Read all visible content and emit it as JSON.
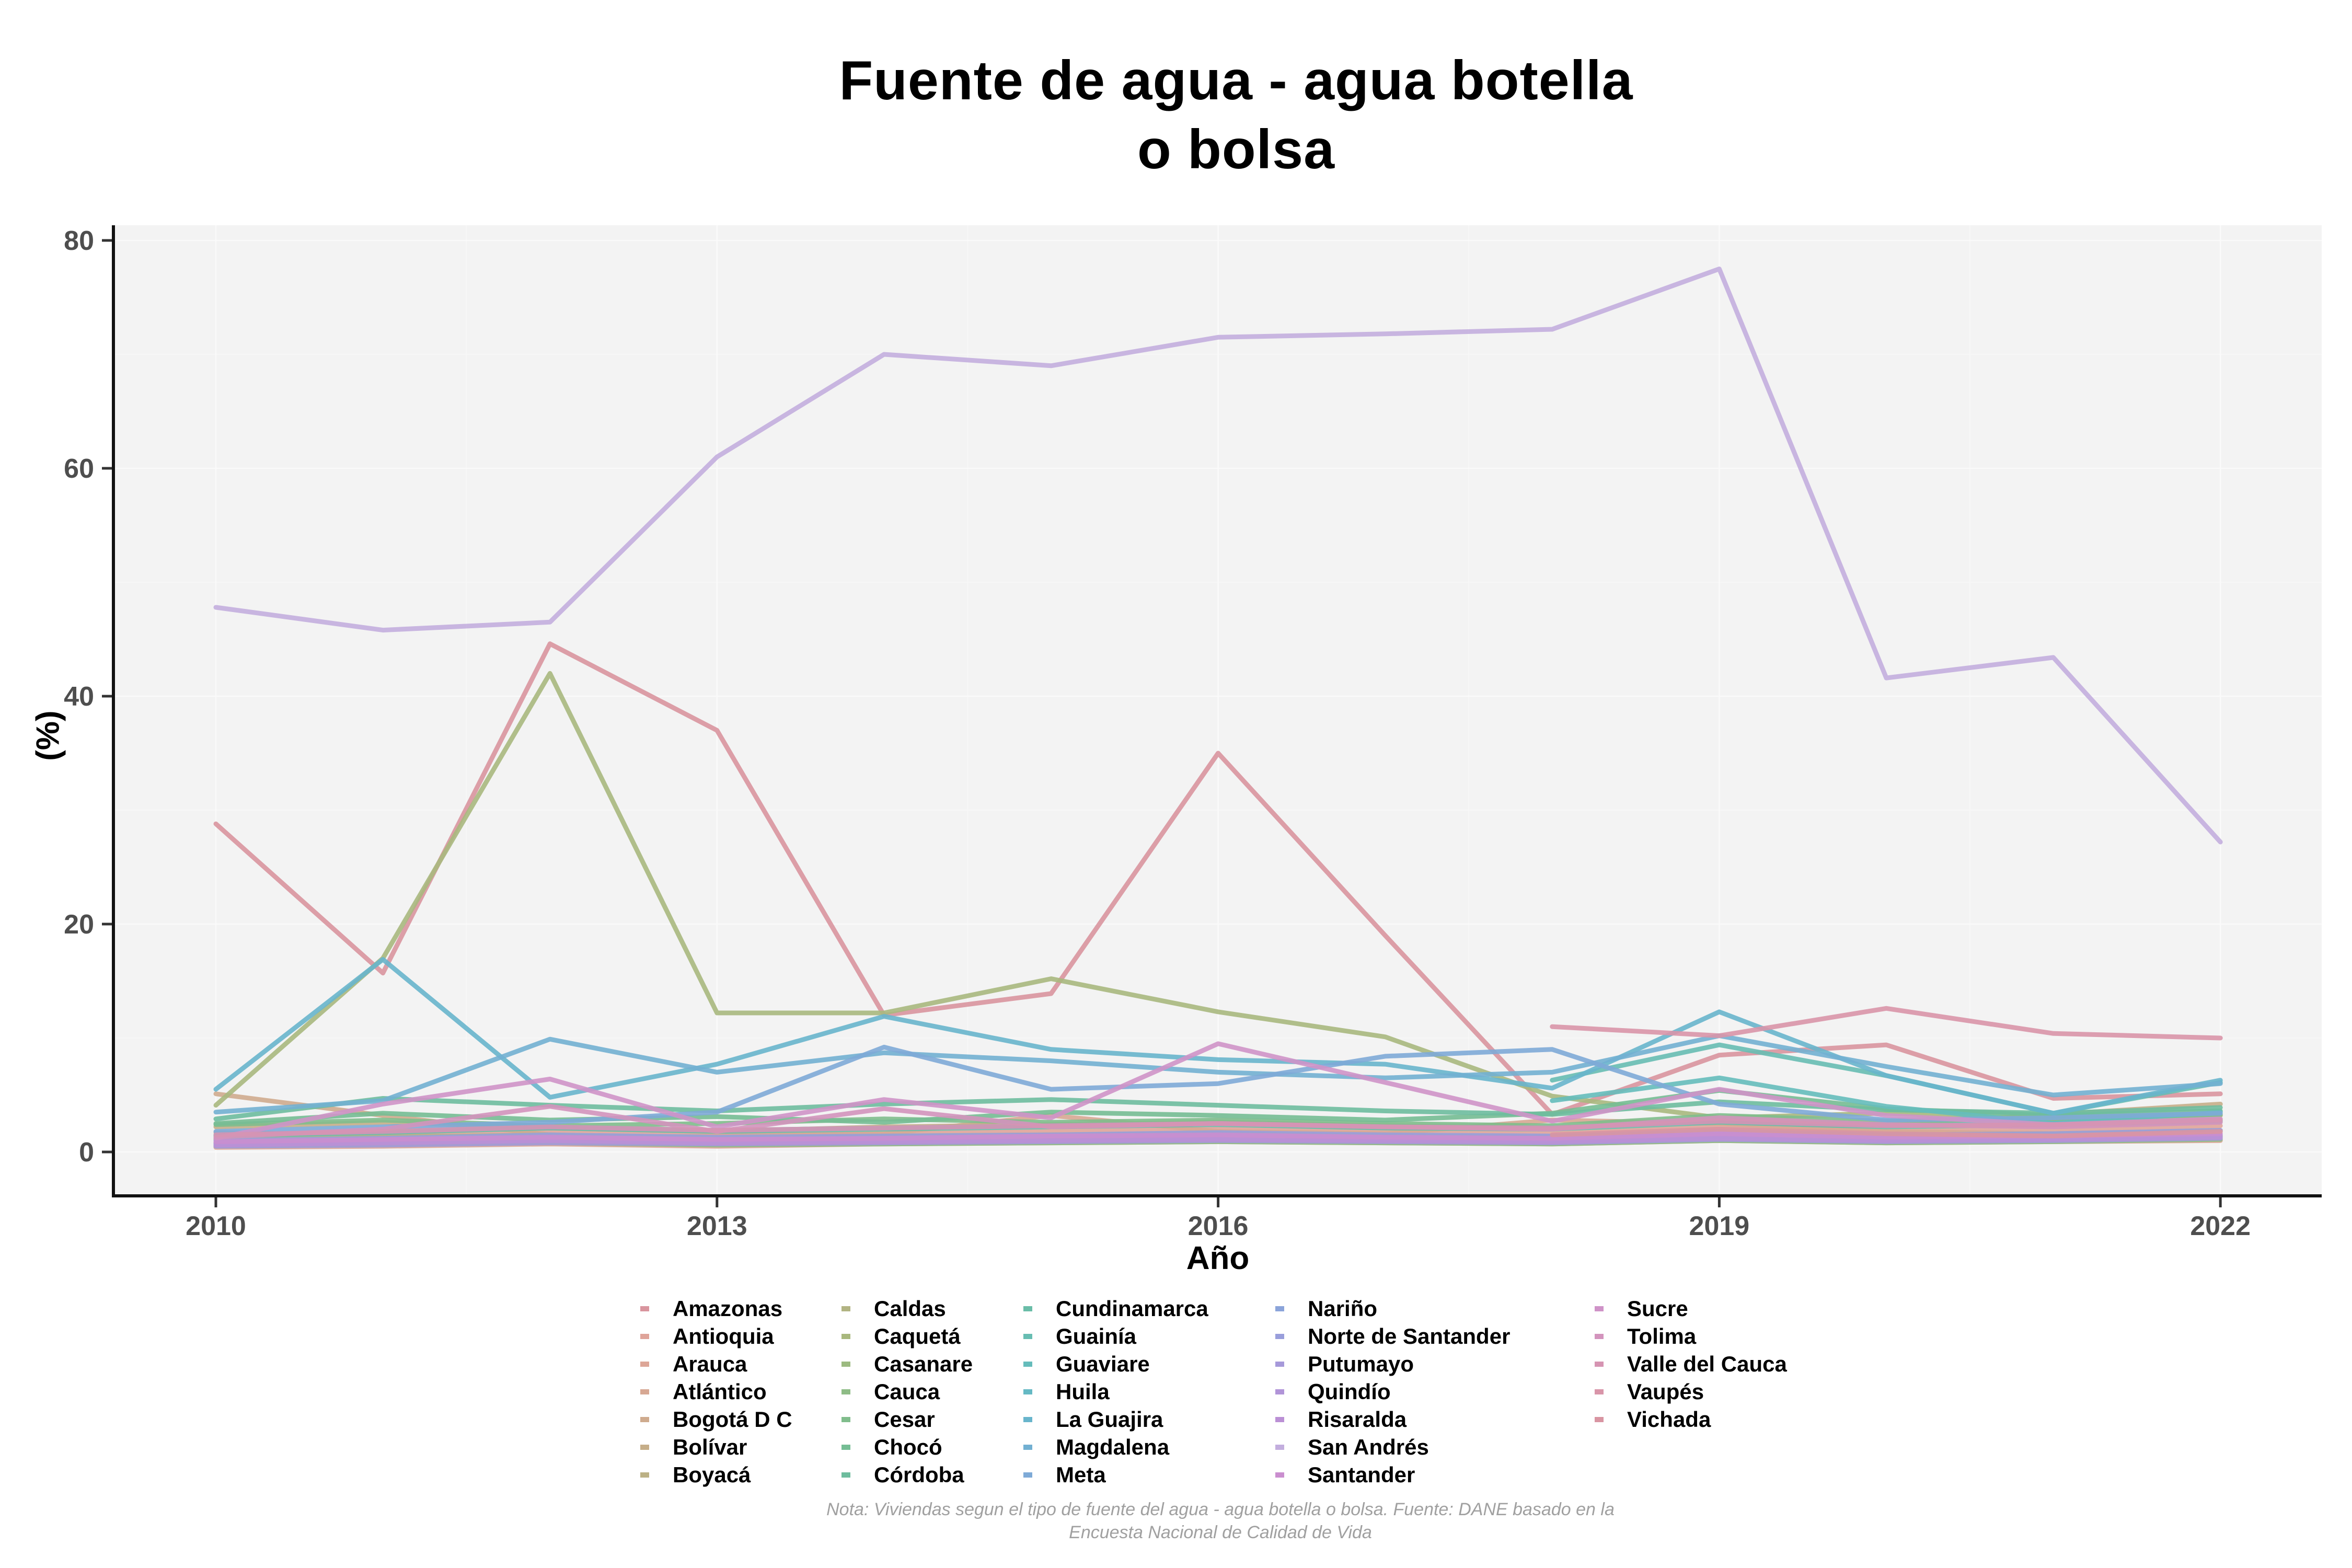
{
  "title": {
    "line1": "Fuente de agua - agua botella",
    "line2": "o bolsa"
  },
  "axes": {
    "x_label": "Año",
    "y_label": "(%)",
    "x_ticks": [
      2010,
      2013,
      2016,
      2019,
      2022
    ],
    "y_ticks": [
      0,
      20,
      40,
      60,
      80
    ]
  },
  "footnote": {
    "line1": "Nota: Viviendas segun el tipo de fuente del agua - agua botella o bolsa. Fuente: DANE basado en la",
    "line2": "Encuesta Nacional de Calidad de Vida"
  },
  "chart_data": {
    "type": "line",
    "title": "Fuente de agua - agua botella o bolsa",
    "xlabel": "Año",
    "ylabel": "(%)",
    "x": [
      2010,
      2011,
      2012,
      2013,
      2014,
      2015,
      2016,
      2017,
      2018,
      2019,
      2020,
      2021,
      2022
    ],
    "xlim": [
      2010,
      2022
    ],
    "ylim": [
      0,
      80
    ],
    "grid": "on",
    "legend_position": "bottom",
    "panel_color": "#f3f3f3",
    "series": [
      {
        "name": "Amazonas",
        "color": "#d9959e",
        "values": [
          28.8,
          15.7,
          44.6,
          37.0,
          12.0,
          13.9,
          35.0,
          19.0,
          3.3,
          8.5,
          9.4,
          4.7,
          5.1
        ]
      },
      {
        "name": "Antioquia",
        "color": "#dfa49a",
        "values": [
          1.2,
          1.4,
          1.8,
          1.5,
          1.6,
          1.8,
          2.0,
          1.8,
          1.6,
          2.2,
          1.8,
          2.0,
          2.3
        ]
      },
      {
        "name": "Arauca",
        "color": "#dda697",
        "values": [
          0.4,
          0.5,
          0.7,
          0.5,
          0.7,
          0.8,
          0.9,
          0.8,
          0.7,
          1.0,
          0.8,
          0.9,
          1.0
        ]
      },
      {
        "name": "Atlántico",
        "color": "#d7a893",
        "values": [
          1.7,
          1.5,
          1.2,
          1.4,
          1.6,
          3.2,
          1.8,
          1.6,
          2.8,
          2.5,
          1.8,
          1.6,
          1.9
        ]
      },
      {
        "name": "Bogotá D C",
        "color": "#cfab8e",
        "values": [
          5.1,
          3.2,
          1.5,
          1.2,
          1.4,
          1.3,
          1.5,
          1.3,
          1.2,
          1.5,
          1.3,
          1.2,
          1.4
        ]
      },
      {
        "name": "Bolívar",
        "color": "#c6ae89",
        "values": [
          2.2,
          2.6,
          2.1,
          1.8,
          2.2,
          2.4,
          2.6,
          2.3,
          2.1,
          2.8,
          2.4,
          3.3,
          4.2
        ]
      },
      {
        "name": "Boyacá",
        "color": "#bcb185",
        "values": [
          0.6,
          0.8,
          0.9,
          0.7,
          0.8,
          0.9,
          1.0,
          0.9,
          0.8,
          1.1,
          0.9,
          1.0,
          1.2
        ]
      },
      {
        "name": "Caldas",
        "color": "#b2b483",
        "values": [
          1.1,
          1.3,
          1.5,
          1.2,
          1.4,
          1.5,
          1.6,
          1.4,
          1.3,
          1.7,
          1.5,
          1.6,
          1.8
        ]
      },
      {
        "name": "Caquetá",
        "color": "#a9b87e",
        "values": [
          4.1,
          17.0,
          42.0,
          12.2,
          12.2,
          15.2,
          12.3,
          10.1,
          4.9,
          3.0,
          3.4,
          2.8,
          3.2
        ]
      },
      {
        "name": "Casanare",
        "color": "#9cba80",
        "values": [
          0.8,
          1.0,
          1.2,
          1.0,
          1.1,
          1.2,
          1.3,
          1.1,
          1.0,
          1.3,
          1.1,
          1.2,
          1.4
        ]
      },
      {
        "name": "Cauca",
        "color": "#8ebc86",
        "values": [
          0.5,
          0.6,
          0.8,
          0.6,
          0.7,
          0.8,
          0.9,
          0.8,
          0.7,
          1.0,
          0.8,
          0.9,
          1.1
        ]
      },
      {
        "name": "Cesar",
        "color": "#80bd8c",
        "values": [
          2.4,
          2.8,
          2.3,
          2.5,
          2.9,
          2.6,
          2.8,
          2.5,
          2.3,
          3.2,
          2.7,
          2.9,
          3.3
        ]
      },
      {
        "name": "Chocó",
        "color": "#75bd94",
        "values": [
          2.5,
          3.4,
          2.8,
          3.1,
          2.6,
          3.5,
          3.2,
          2.8,
          3.4,
          5.4,
          3.8,
          3.2,
          3.6
        ]
      },
      {
        "name": "Córdoba",
        "color": "#6ebd9e",
        "values": [
          2.9,
          4.7,
          4.1,
          3.6,
          4.2,
          4.6,
          4.1,
          3.6,
          3.3,
          4.4,
          3.7,
          3.4,
          3.9
        ]
      },
      {
        "name": "Cundinamarca",
        "color": "#6abda8",
        "values": [
          1.4,
          1.7,
          2.1,
          1.8,
          2.0,
          2.2,
          2.4,
          2.1,
          2.0,
          2.6,
          2.2,
          2.4,
          2.7
        ]
      },
      {
        "name": "Guainía",
        "color": "#67bdb2",
        "values": [
          null,
          null,
          null,
          null,
          null,
          null,
          null,
          null,
          6.3,
          9.4,
          6.7,
          3.4,
          6.1
        ]
      },
      {
        "name": "Guaviare",
        "color": "#65bcbb",
        "values": [
          null,
          null,
          null,
          null,
          null,
          null,
          null,
          null,
          4.5,
          6.5,
          4.0,
          2.5,
          3.5
        ]
      },
      {
        "name": "Huila",
        "color": "#65b9c4",
        "values": [
          1.5,
          1.8,
          2.2,
          1.9,
          2.1,
          2.3,
          2.5,
          2.2,
          2.1,
          2.7,
          2.3,
          2.5,
          2.8
        ]
      },
      {
        "name": "La Guajira",
        "color": "#68b5cc",
        "values": [
          5.5,
          16.9,
          4.8,
          7.7,
          11.9,
          9.0,
          8.1,
          7.7,
          5.6,
          12.3,
          6.7,
          3.4,
          6.3
        ]
      },
      {
        "name": "Magdalena",
        "color": "#72b0d2",
        "values": [
          3.5,
          4.5,
          9.9,
          7.0,
          8.7,
          8.0,
          7.0,
          6.5,
          7.0,
          10.2,
          7.5,
          5.0,
          6.0
        ]
      },
      {
        "name": "Meta",
        "color": "#7eaad7",
        "values": [
          1.8,
          2.2,
          2.6,
          3.5,
          9.2,
          5.5,
          6.0,
          8.4,
          9.0,
          4.2,
          2.8,
          3.0,
          3.4
        ]
      },
      {
        "name": "Nariño",
        "color": "#8ba4da",
        "values": [
          0.7,
          0.9,
          1.1,
          0.9,
          1.0,
          1.1,
          1.2,
          1.0,
          0.9,
          1.2,
          1.0,
          1.1,
          1.3
        ]
      },
      {
        "name": "Norte de Santander",
        "color": "#999edb",
        "values": [
          1.0,
          1.2,
          1.5,
          1.3,
          1.4,
          1.5,
          1.7,
          1.5,
          1.4,
          1.8,
          1.5,
          1.6,
          1.9
        ]
      },
      {
        "name": "Putumayo",
        "color": "#a699da",
        "values": [
          0.5,
          0.6,
          0.8,
          0.7,
          0.8,
          0.9,
          1.0,
          0.9,
          0.8,
          1.1,
          0.9,
          1.0,
          1.2
        ]
      },
      {
        "name": "Quindío",
        "color": "#b194d8",
        "values": [
          0.8,
          1.0,
          1.2,
          1.0,
          1.1,
          1.3,
          1.4,
          1.2,
          1.1,
          1.5,
          1.2,
          1.3,
          1.5
        ]
      },
      {
        "name": "Risaralda",
        "color": "#bb90d5",
        "values": [
          0.6,
          0.8,
          1.0,
          0.8,
          0.9,
          1.0,
          1.1,
          1.0,
          0.9,
          1.2,
          1.0,
          1.1,
          1.3
        ]
      },
      {
        "name": "San Andrés",
        "color": "#c3aede",
        "values": [
          47.8,
          45.8,
          46.5,
          61.0,
          70.0,
          69.0,
          71.5,
          71.8,
          72.2,
          77.5,
          41.6,
          43.4,
          27.2
        ]
      },
      {
        "name": "Santander",
        "color": "#ca8ecf",
        "values": [
          0.9,
          1.1,
          1.3,
          1.1,
          1.2,
          1.4,
          1.5,
          1.3,
          1.2,
          1.6,
          1.3,
          1.4,
          1.6
        ]
      },
      {
        "name": "Sucre",
        "color": "#cf93c8",
        "values": [
          1.2,
          4.2,
          6.4,
          2.2,
          4.6,
          3.0,
          9.5,
          6.1,
          2.7,
          5.5,
          3.2,
          2.4,
          2.9
        ]
      },
      {
        "name": "Tolima",
        "color": "#d394bd",
        "values": [
          1.3,
          2.0,
          4.0,
          1.8,
          3.8,
          2.2,
          2.5,
          2.2,
          2.0,
          3.0,
          2.4,
          2.2,
          2.6
        ]
      },
      {
        "name": "Valle del Cauca",
        "color": "#d694b2",
        "values": [
          1.5,
          1.8,
          2.2,
          1.9,
          2.1,
          2.3,
          2.5,
          2.2,
          2.1,
          2.7,
          2.3,
          2.4,
          2.8
        ]
      },
      {
        "name": "Vaupés",
        "color": "#d995a9",
        "values": [
          null,
          null,
          null,
          null,
          null,
          null,
          null,
          null,
          11.0,
          10.2,
          12.6,
          10.4,
          10.0
        ]
      },
      {
        "name": "Vichada",
        "color": "#d995a2",
        "values": [
          null,
          null,
          null,
          null,
          null,
          null,
          null,
          null,
          1.5,
          2.0,
          1.6,
          1.4,
          1.8
        ]
      }
    ],
    "legend_columns": [
      7,
      7,
      7,
      7,
      5
    ]
  }
}
